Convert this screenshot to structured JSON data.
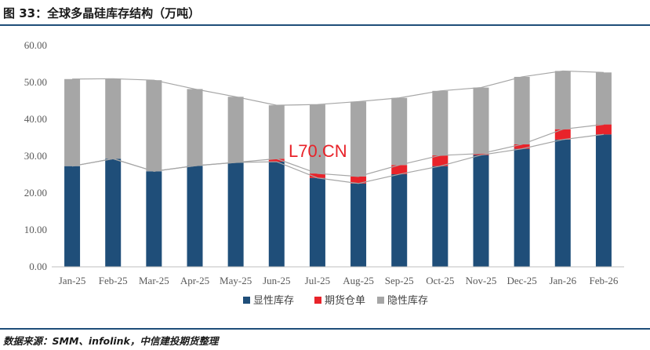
{
  "header": {
    "title": "图 33：全球多晶硅库存结构（万吨）"
  },
  "footer": {
    "source": "数据来源：SMM、infolink，中信建投期货整理"
  },
  "watermark": "L70.CN",
  "colors": {
    "visible": "#1f4e79",
    "futures": "#e8232a",
    "hidden": "#a6a6a6",
    "line": "#a6a6a6",
    "axis": "#bfbfbf"
  },
  "chart_data": {
    "type": "bar",
    "stacked": true,
    "categories": [
      "Jan-25",
      "Feb-25",
      "Mar-25",
      "Apr-25",
      "May-25",
      "Jun-25",
      "Jul-25",
      "Aug-25",
      "Sep-25",
      "Oct-25",
      "Nov-25",
      "Dec-25",
      "Jan-26",
      "Feb-26"
    ],
    "series": [
      {
        "name": "显性库存",
        "color": "#1f4e79",
        "values": [
          27.3,
          29.3,
          25.9,
          27.4,
          28.3,
          28.5,
          24.1,
          22.6,
          25.1,
          27.3,
          30.3,
          32.0,
          34.5,
          35.9
        ]
      },
      {
        "name": "期货仓单",
        "color": "#e8232a",
        "values": [
          0.0,
          0.0,
          0.0,
          0.0,
          0.0,
          0.8,
          1.2,
          1.9,
          2.5,
          2.9,
          0.4,
          1.2,
          2.8,
          2.7
        ]
      },
      {
        "name": "隐性库存",
        "color": "#a6a6a6",
        "values": [
          23.6,
          21.7,
          24.7,
          20.8,
          17.8,
          14.5,
          18.7,
          20.3,
          18.2,
          17.5,
          17.9,
          18.3,
          15.8,
          14.1
        ]
      }
    ],
    "ylim": [
      0,
      60
    ],
    "yticks": [
      "0.00",
      "10.00",
      "20.00",
      "30.00",
      "40.00",
      "50.00",
      "60.00"
    ],
    "legend_position": "bottom",
    "grid": false
  }
}
